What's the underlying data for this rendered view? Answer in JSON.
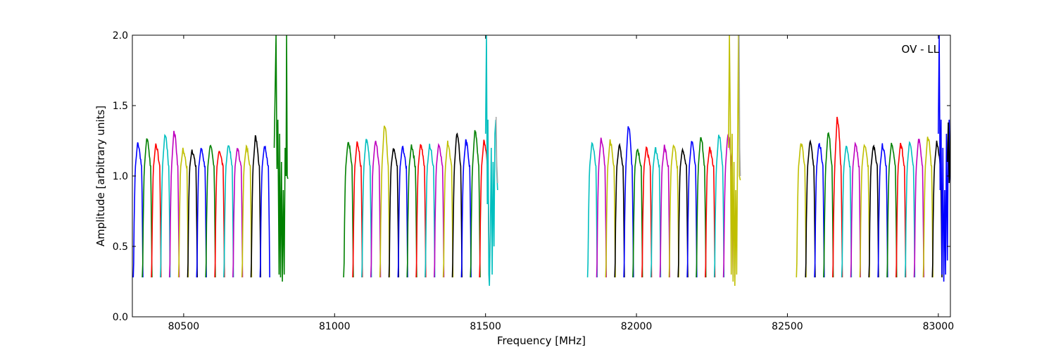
{
  "chart_data": {
    "type": "line",
    "title": "",
    "xlabel": "Frequency [MHz]",
    "ylabel": "Amplitude [arbitrary units]",
    "annotation": "OV - LL",
    "xlim": [
      80330,
      83040
    ],
    "ylim": [
      0.0,
      2.0
    ],
    "xticks": [
      80500,
      81000,
      81500,
      82000,
      82500,
      83000
    ],
    "xtick_labels": [
      "80500",
      "81000",
      "81500",
      "82000",
      "82500",
      "83000"
    ],
    "yticks": [
      0.0,
      0.5,
      1.0,
      1.5,
      2.0
    ],
    "ytick_labels": [
      "0.0",
      "0.5",
      "1.0",
      "1.5",
      "2.0"
    ],
    "grid": false,
    "color_cycle": [
      "#0000ff",
      "#008000",
      "#ff0000",
      "#00bfbf",
      "#bf00bf",
      "#bfbf00",
      "#000000"
    ],
    "subband_width_mhz": 32,
    "band_groups": [
      {
        "channel_starts": [
          80333,
          80363,
          80393,
          80423,
          80453,
          80483,
          80513,
          80543,
          80573,
          80603,
          80633,
          80663,
          80693,
          80723,
          80753
        ],
        "peaks": [
          1.24,
          1.27,
          1.23,
          1.3,
          1.32,
          1.19,
          1.19,
          1.2,
          1.22,
          1.19,
          1.23,
          1.2,
          1.21,
          1.28,
          1.22
        ],
        "edge_start_mhz": 80800,
        "edge_series": [
          {
            "color": "#008000",
            "x": [
              80800,
              80806,
              80809,
              80812,
              80816,
              80818,
              80821,
              80824,
              80827,
              80830,
              80833,
              80836,
              80839,
              80841,
              80843,
              80845
            ],
            "y": [
              1.2,
              2.0,
              1.05,
              1.4,
              0.3,
              1.3,
              0.28,
              1.1,
              0.25,
              0.9,
              0.3,
              1.2,
              1.0,
              2.0,
              1.0,
              0.98
            ]
          }
        ]
      },
      {
        "channel_starts": [
          81030,
          81060,
          81090,
          81120,
          81150,
          81180,
          81210,
          81240,
          81270,
          81300,
          81330,
          81360,
          81390,
          81420,
          81450,
          81480
        ],
        "peaks": [
          1.25,
          1.24,
          1.27,
          1.25,
          1.36,
          1.2,
          1.21,
          1.22,
          1.23,
          1.22,
          1.23,
          1.24,
          1.31,
          1.25,
          1.32,
          1.25
        ],
        "edge_start_mhz": 81500,
        "edge_series": [
          {
            "color": "#00bfbf",
            "x": [
              81500,
              81503,
              81506,
              81508,
              81511,
              81513,
              81516,
              81519,
              81522,
              81525,
              81528,
              81531,
              81534,
              81537,
              81540
            ],
            "y": [
              1.3,
              2.0,
              0.8,
              1.4,
              0.3,
              0.22,
              0.6,
              1.2,
              0.3,
              1.1,
              0.5,
              1.3,
              1.4,
              1.05,
              0.9
            ]
          },
          {
            "color": "#aaaaaa",
            "x": [
              81535,
              81537,
              81540
            ],
            "y": [
              1.42,
              1.1,
              0.95
            ]
          }
        ]
      },
      {
        "channel_starts": [
          81838,
          81868,
          81898,
          81928,
          81958,
          81988,
          82018,
          82048,
          82078,
          82108,
          82138,
          82168,
          82198,
          82228,
          82258,
          82288
        ],
        "peaks": [
          1.24,
          1.27,
          1.25,
          1.22,
          1.36,
          1.2,
          1.2,
          1.2,
          1.21,
          1.23,
          1.2,
          1.25,
          1.28,
          1.2,
          1.3,
          1.3
        ],
        "edge_start_mhz": 82305,
        "edge_series": [
          {
            "color": "#bfbf00",
            "x": [
              82305,
              82308,
              82311,
              82314,
              82317,
              82320,
              82323,
              82326,
              82329,
              82332,
              82335,
              82338,
              82341,
              82344
            ],
            "y": [
              1.2,
              2.0,
              1.4,
              0.3,
              1.3,
              0.25,
              1.1,
              0.22,
              0.9,
              0.3,
              1.2,
              2.0,
              1.0,
              0.97
            ]
          },
          {
            "color": "#aaaaaa",
            "x": [
              82340,
              82342,
              82344
            ],
            "y": [
              2.0,
              1.2,
              1.0
            ]
          }
        ]
      },
      {
        "channel_starts": [
          82530,
          82560,
          82590,
          82620,
          82650,
          82680,
          82710,
          82740,
          82770,
          82800,
          82830,
          82860,
          82890,
          82920,
          82950,
          82980
        ],
        "peaks": [
          1.24,
          1.25,
          1.24,
          1.31,
          1.41,
          1.22,
          1.23,
          1.23,
          1.22,
          1.22,
          1.23,
          1.23,
          1.25,
          1.27,
          1.28,
          1.24
        ],
        "edge_start_mhz": 83000,
        "edge_series": [
          {
            "color": "#0000ff",
            "x": [
              83000,
              83003,
              83006,
              83009,
              83012,
              83015,
              83018,
              83021,
              83024,
              83027,
              83030,
              83033,
              83036,
              83039,
              83041
            ],
            "y": [
              1.3,
              2.0,
              0.9,
              1.4,
              0.3,
              1.2,
              0.25,
              0.9,
              0.3,
              1.3,
              0.4,
              1.3,
              1.4,
              1.0,
              0.95
            ]
          },
          {
            "color": "#000000",
            "x": [
              83030,
              83033,
              83036,
              83039,
              83041
            ],
            "y": [
              1.1,
              1.38,
              0.95,
              1.2,
              1.35
            ]
          }
        ]
      }
    ]
  }
}
